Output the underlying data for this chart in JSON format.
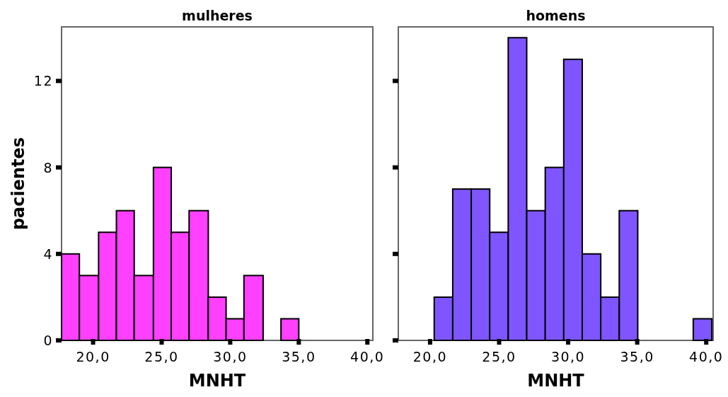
{
  "chart_data": [
    {
      "type": "histogram",
      "title": "mulheres",
      "xlabel": "MNHT",
      "ylabel": "pacientes",
      "color": "#ff40ff",
      "bins": [
        17.7,
        19.0,
        20.4,
        21.7,
        23.0,
        24.4,
        25.7,
        27.0,
        28.4,
        29.7,
        31.0,
        32.4,
        33.7,
        35.0
      ],
      "values": [
        4,
        3,
        5,
        6,
        3,
        8,
        5,
        6,
        2,
        1,
        3,
        0,
        1
      ],
      "xlim": [
        17.7,
        40.4
      ],
      "xticks": [
        {
          "value": 20,
          "label": "20,0"
        },
        {
          "value": 25,
          "label": "25,0"
        },
        {
          "value": 30,
          "label": "30,0"
        },
        {
          "value": 35,
          "label": "35,0"
        },
        {
          "value": 40,
          "label": "40,0"
        }
      ],
      "ylim": [
        0,
        14.5
      ],
      "yticks": [
        0,
        4,
        8,
        12
      ],
      "grid": false
    },
    {
      "type": "histogram",
      "title": "homens",
      "xlabel": "MNHT",
      "color": "#7f55ff",
      "bins": [
        20.3,
        21.64,
        22.98,
        24.32,
        25.66,
        27.0,
        28.34,
        29.68,
        31.02,
        32.36,
        33.7,
        35.04,
        36.38,
        37.72,
        39.06,
        40.4
      ],
      "values": [
        2,
        7,
        7,
        5,
        14,
        6,
        8,
        13,
        4,
        2,
        6,
        0,
        0,
        0,
        1
      ],
      "xlim": [
        17.7,
        40.5
      ],
      "xticks": [
        {
          "value": 20,
          "label": "20,0"
        },
        {
          "value": 25,
          "label": "25,0"
        },
        {
          "value": 30,
          "label": "30,0"
        },
        {
          "value": 35,
          "label": "35,0"
        },
        {
          "value": 40,
          "label": "40,0"
        }
      ],
      "ylim": [
        0,
        14.5
      ],
      "yticks": [
        {
          "value": 0,
          "label": null
        },
        {
          "value": 4,
          "label": null
        },
        {
          "value": 8,
          "label": null
        },
        {
          "value": 12,
          "label": null
        }
      ],
      "tick_labels": "x",
      "grid": false
    }
  ]
}
